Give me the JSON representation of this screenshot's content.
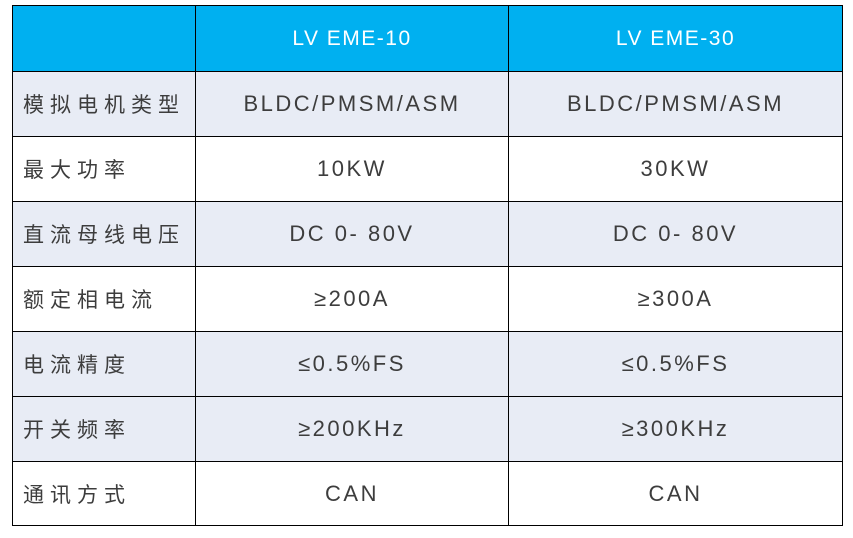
{
  "table": {
    "title_semantic": "product-spec-comparison-table",
    "colors": {
      "header_bg": "#00B0F0",
      "header_text": "#FFFFFF",
      "shaded_row_bg": "#E8ECF5",
      "plain_row_bg": "#FFFFFF",
      "border": "#000000",
      "body_text": "#3D3D3D"
    },
    "header": {
      "corner": "",
      "product1": "LV EME-10",
      "product2": "LV EME-30"
    },
    "rows": [
      {
        "label": "模拟电机类型",
        "value1": "BLDC/PMSM/ASM",
        "value2": "BLDC/PMSM/ASM"
      },
      {
        "label": "最大功率",
        "value1": "10KW",
        "value2": "30KW"
      },
      {
        "label": "直流母线电压",
        "value1": "DC 0- 80V",
        "value2": "DC 0- 80V"
      },
      {
        "label": "额定相电流",
        "value1": "≥200A",
        "value2": "≥300A"
      },
      {
        "label": "电流精度",
        "value1": "≤0.5%FS",
        "value2": "≤0.5%FS"
      },
      {
        "label": "开关频率",
        "value1": "≥200KHz",
        "value2": "≥300KHz"
      },
      {
        "label": "通讯方式",
        "value1": "CAN",
        "value2": "CAN"
      }
    ]
  }
}
